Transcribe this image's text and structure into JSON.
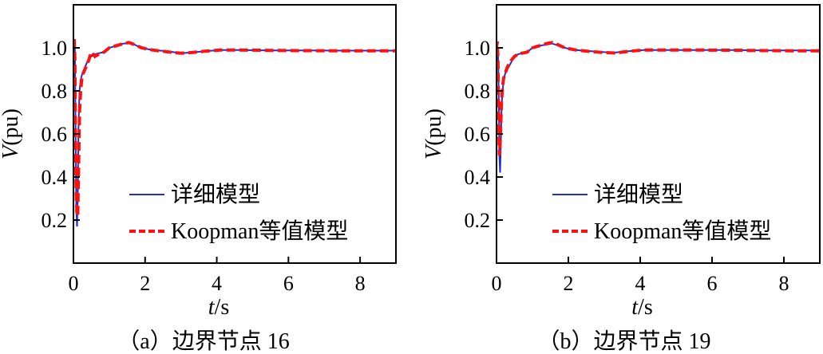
{
  "figure": {
    "x_unit_label": "t",
    "x_unit_suffix": "/s",
    "y_label_italic": "V",
    "y_label_suffix": "(pu)"
  },
  "chart_data": [
    {
      "type": "line",
      "caption": "（a）边界节点 16",
      "xlabel": "t/s",
      "ylabel": "V(pu)",
      "xlim": [
        0,
        9
      ],
      "ylim": [
        0,
        1.2
      ],
      "x_ticks": [
        0,
        2,
        4,
        6,
        8
      ],
      "x_tick_labels": [
        "0",
        "2",
        "4",
        "6",
        "8"
      ],
      "y_ticks": [
        0.2,
        0.4,
        0.6,
        0.8,
        1.0
      ],
      "y_tick_labels": [
        "0.2",
        "0.4",
        "0.6",
        "0.8",
        "1.0"
      ],
      "legend": [
        "详细模型",
        "Koopman等值模型"
      ],
      "legend_location": "bottom-right",
      "series": [
        {
          "name": "详细模型",
          "color": "#1f2fd6",
          "style": "solid",
          "x": [
            0,
            0.04,
            0.06,
            0.08,
            0.1,
            0.12,
            0.14,
            0.17,
            0.2,
            0.23,
            0.27,
            0.32,
            0.4,
            0.5,
            0.6,
            0.7,
            0.85,
            1.0,
            1.2,
            1.4,
            1.55,
            1.7,
            1.9,
            2.2,
            2.6,
            3.0,
            3.3,
            3.7,
            4.1,
            4.6,
            5.5,
            6.5,
            7.5,
            8.5,
            9.0
          ],
          "y": [
            1.0,
            1.0,
            0.6,
            0.25,
            0.17,
            0.3,
            0.62,
            0.8,
            0.85,
            0.87,
            0.89,
            0.91,
            0.94,
            0.96,
            0.97,
            0.975,
            0.98,
            1.0,
            1.01,
            1.02,
            1.022,
            1.015,
            1.0,
            0.99,
            0.985,
            0.975,
            0.978,
            0.985,
            0.99,
            0.99,
            0.988,
            0.988,
            0.987,
            0.987,
            0.987
          ]
        },
        {
          "name": "Koopman等值模型",
          "color": "#ff1010",
          "style": "dashed",
          "x": [
            0,
            0.02,
            0.04,
            0.06,
            0.08,
            0.1,
            0.12,
            0.14,
            0.17,
            0.2,
            0.23,
            0.27,
            0.32,
            0.4,
            0.5,
            0.6,
            0.7,
            0.85,
            1.0,
            1.2,
            1.4,
            1.55,
            1.7,
            1.9,
            2.2,
            2.6,
            3.0,
            3.3,
            3.7,
            4.1,
            4.6,
            5.5,
            6.5,
            7.5,
            8.5,
            9.0
          ],
          "y": [
            1.0,
            1.05,
            0.95,
            0.5,
            0.3,
            0.22,
            0.22,
            0.4,
            0.7,
            0.8,
            0.85,
            0.88,
            0.9,
            0.93,
            0.98,
            0.96,
            0.97,
            0.98,
            1.0,
            1.01,
            1.02,
            1.025,
            1.015,
            1.0,
            0.99,
            0.982,
            0.975,
            0.978,
            0.985,
            0.99,
            0.99,
            0.988,
            0.987,
            0.986,
            0.986,
            0.986
          ]
        }
      ]
    },
    {
      "type": "line",
      "caption": "（b）边界节点 19",
      "xlabel": "t/s",
      "ylabel": "V(pu)",
      "xlim": [
        0,
        9
      ],
      "ylim": [
        0,
        1.2
      ],
      "x_ticks": [
        0,
        2,
        4,
        6,
        8
      ],
      "x_tick_labels": [
        "0",
        "2",
        "4",
        "6",
        "8"
      ],
      "y_ticks": [
        0.2,
        0.4,
        0.6,
        0.8,
        1.0
      ],
      "y_tick_labels": [
        "0.2",
        "0.4",
        "0.6",
        "0.8",
        "1.0"
      ],
      "legend": [
        "详细模型",
        "Koopman等值模型"
      ],
      "legend_location": "bottom-right",
      "series": [
        {
          "name": "详细模型",
          "color": "#1f2fd6",
          "style": "solid",
          "x": [
            0,
            0.04,
            0.06,
            0.08,
            0.1,
            0.12,
            0.14,
            0.17,
            0.2,
            0.24,
            0.3,
            0.4,
            0.5,
            0.6,
            0.7,
            0.85,
            1.0,
            1.2,
            1.4,
            1.55,
            1.7,
            1.9,
            2.2,
            2.6,
            3.0,
            3.3,
            3.7,
            4.1,
            4.6,
            5.5,
            6.5,
            7.5,
            8.5,
            9.0
          ],
          "y": [
            1.0,
            1.0,
            0.8,
            0.5,
            0.42,
            0.55,
            0.72,
            0.8,
            0.85,
            0.88,
            0.9,
            0.93,
            0.96,
            0.97,
            0.975,
            0.98,
            1.0,
            1.01,
            1.015,
            1.02,
            1.012,
            1.0,
            0.99,
            0.985,
            0.98,
            0.978,
            0.985,
            0.99,
            0.99,
            0.99,
            0.99,
            0.988,
            0.988,
            0.988
          ]
        },
        {
          "name": "Koopman等值模型",
          "color": "#ff1010",
          "style": "dashed",
          "x": [
            0,
            0.02,
            0.04,
            0.06,
            0.08,
            0.1,
            0.12,
            0.14,
            0.17,
            0.2,
            0.24,
            0.3,
            0.4,
            0.5,
            0.6,
            0.7,
            0.85,
            1.0,
            1.2,
            1.4,
            1.55,
            1.7,
            1.9,
            2.2,
            2.6,
            3.0,
            3.3,
            3.7,
            4.1,
            4.6,
            5.5,
            6.5,
            7.5,
            8.5,
            9.0
          ],
          "y": [
            1.0,
            1.03,
            0.95,
            0.65,
            0.5,
            0.55,
            0.65,
            0.75,
            0.82,
            0.86,
            0.88,
            0.91,
            0.94,
            0.96,
            0.97,
            0.975,
            0.98,
            1.0,
            1.01,
            1.02,
            1.025,
            1.015,
            1.0,
            0.99,
            0.983,
            0.978,
            0.976,
            0.984,
            0.99,
            0.99,
            0.99,
            0.989,
            0.987,
            0.986,
            0.986
          ]
        }
      ]
    }
  ]
}
